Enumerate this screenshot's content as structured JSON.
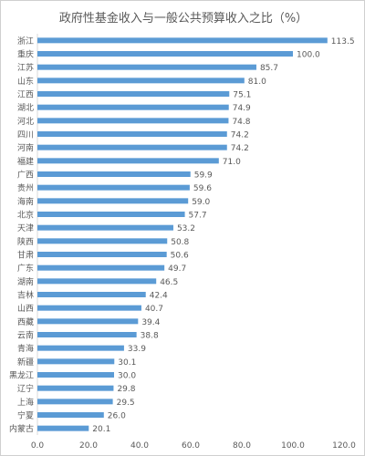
{
  "chart_data": {
    "type": "bar",
    "orientation": "horizontal",
    "title": "政府性基金收入与一般公共预算收入之比（%）",
    "categories": [
      "浙江",
      "重庆",
      "江苏",
      "山东",
      "江西",
      "湖北",
      "河北",
      "四川",
      "河南",
      "福建",
      "广西",
      "贵州",
      "海南",
      "北京",
      "天津",
      "陕西",
      "甘肃",
      "广东",
      "湖南",
      "吉林",
      "山西",
      "西藏",
      "云南",
      "青海",
      "新疆",
      "黑龙江",
      "辽宁",
      "上海",
      "宁夏",
      "内蒙古"
    ],
    "values": [
      113.5,
      100.0,
      85.7,
      81.0,
      75.1,
      74.9,
      74.8,
      74.2,
      74.2,
      71.0,
      59.9,
      59.6,
      59.0,
      57.7,
      53.2,
      50.8,
      50.6,
      49.7,
      46.5,
      42.4,
      40.7,
      39.4,
      38.8,
      33.9,
      30.1,
      30.0,
      29.8,
      29.5,
      26.0,
      20.1
    ],
    "value_labels": [
      "113.5",
      "100.0",
      "85.7",
      "81.0",
      "75.1",
      "74.9",
      "74.8",
      "74.2",
      "74.2",
      "71.0",
      "59.9",
      "59.6",
      "59.0",
      "57.7",
      "53.2",
      "50.8",
      "50.6",
      "49.7",
      "46.5",
      "42.4",
      "40.7",
      "39.4",
      "38.8",
      "33.9",
      "30.1",
      "30.0",
      "29.8",
      "29.5",
      "26.0",
      "20.1"
    ],
    "xlim": [
      0,
      120
    ],
    "x_ticks": [
      "0.0",
      "20.0",
      "40.0",
      "60.0",
      "80.0",
      "100.0",
      "120.0"
    ],
    "xlabel": "",
    "ylabel": "",
    "grid": false,
    "legend": "none",
    "colors": {
      "bar": "#5b9bd5",
      "axis": "#d9d9d9",
      "text": "#595959",
      "title": "#595959"
    }
  }
}
